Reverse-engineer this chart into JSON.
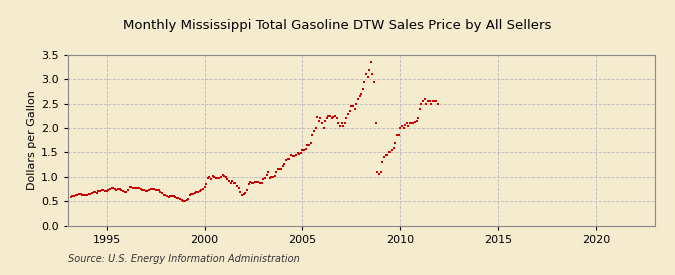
{
  "title": "Monthly Mississippi Total Gasoline DTW Sales Price by All Sellers",
  "ylabel": "Dollars per Gallon",
  "source": "Source: U.S. Energy Information Administration",
  "marker_color": "#CC0000",
  "background_color": "#F5EBCF",
  "plot_bg_color": "#F5EBCF",
  "grid_color": "#BBBBBB",
  "xlim": [
    1993.0,
    2023.0
  ],
  "ylim": [
    0.0,
    3.5
  ],
  "yticks": [
    0.0,
    0.5,
    1.0,
    1.5,
    2.0,
    2.5,
    3.0,
    3.5
  ],
  "xticks": [
    1995,
    2000,
    2005,
    2010,
    2015,
    2020
  ],
  "data": [
    [
      1993.17,
      0.59
    ],
    [
      1993.25,
      0.6
    ],
    [
      1993.33,
      0.6
    ],
    [
      1993.42,
      0.62
    ],
    [
      1993.5,
      0.63
    ],
    [
      1993.58,
      0.65
    ],
    [
      1993.67,
      0.64
    ],
    [
      1993.75,
      0.63
    ],
    [
      1993.83,
      0.62
    ],
    [
      1993.92,
      0.63
    ],
    [
      1994.0,
      0.63
    ],
    [
      1994.08,
      0.65
    ],
    [
      1994.17,
      0.65
    ],
    [
      1994.25,
      0.67
    ],
    [
      1994.33,
      0.68
    ],
    [
      1994.42,
      0.68
    ],
    [
      1994.5,
      0.67
    ],
    [
      1994.58,
      0.7
    ],
    [
      1994.67,
      0.71
    ],
    [
      1994.75,
      0.72
    ],
    [
      1994.83,
      0.72
    ],
    [
      1994.92,
      0.7
    ],
    [
      1995.0,
      0.71
    ],
    [
      1995.08,
      0.73
    ],
    [
      1995.17,
      0.74
    ],
    [
      1995.25,
      0.76
    ],
    [
      1995.33,
      0.76
    ],
    [
      1995.42,
      0.75
    ],
    [
      1995.5,
      0.73
    ],
    [
      1995.58,
      0.74
    ],
    [
      1995.67,
      0.74
    ],
    [
      1995.75,
      0.73
    ],
    [
      1995.83,
      0.7
    ],
    [
      1995.92,
      0.68
    ],
    [
      1996.0,
      0.69
    ],
    [
      1996.08,
      0.73
    ],
    [
      1996.17,
      0.79
    ],
    [
      1996.25,
      0.8
    ],
    [
      1996.33,
      0.78
    ],
    [
      1996.42,
      0.76
    ],
    [
      1996.5,
      0.76
    ],
    [
      1996.58,
      0.77
    ],
    [
      1996.67,
      0.76
    ],
    [
      1996.75,
      0.74
    ],
    [
      1996.83,
      0.72
    ],
    [
      1996.92,
      0.72
    ],
    [
      1997.0,
      0.71
    ],
    [
      1997.08,
      0.71
    ],
    [
      1997.17,
      0.72
    ],
    [
      1997.25,
      0.75
    ],
    [
      1997.33,
      0.74
    ],
    [
      1997.42,
      0.74
    ],
    [
      1997.5,
      0.73
    ],
    [
      1997.58,
      0.73
    ],
    [
      1997.67,
      0.72
    ],
    [
      1997.75,
      0.69
    ],
    [
      1997.83,
      0.66
    ],
    [
      1997.92,
      0.63
    ],
    [
      1998.0,
      0.62
    ],
    [
      1998.08,
      0.6
    ],
    [
      1998.17,
      0.59
    ],
    [
      1998.25,
      0.6
    ],
    [
      1998.33,
      0.6
    ],
    [
      1998.42,
      0.6
    ],
    [
      1998.5,
      0.58
    ],
    [
      1998.58,
      0.57
    ],
    [
      1998.67,
      0.56
    ],
    [
      1998.75,
      0.55
    ],
    [
      1998.83,
      0.53
    ],
    [
      1998.92,
      0.51
    ],
    [
      1999.0,
      0.5
    ],
    [
      1999.08,
      0.52
    ],
    [
      1999.17,
      0.55
    ],
    [
      1999.25,
      0.62
    ],
    [
      1999.33,
      0.64
    ],
    [
      1999.42,
      0.65
    ],
    [
      1999.5,
      0.67
    ],
    [
      1999.58,
      0.68
    ],
    [
      1999.67,
      0.69
    ],
    [
      1999.75,
      0.7
    ],
    [
      1999.83,
      0.73
    ],
    [
      1999.92,
      0.75
    ],
    [
      2000.0,
      0.8
    ],
    [
      2000.08,
      0.85
    ],
    [
      2000.17,
      0.97
    ],
    [
      2000.25,
      1.0
    ],
    [
      2000.33,
      0.96
    ],
    [
      2000.42,
      1.01
    ],
    [
      2000.5,
      1.0
    ],
    [
      2000.58,
      0.97
    ],
    [
      2000.67,
      0.98
    ],
    [
      2000.75,
      0.97
    ],
    [
      2000.83,
      1.0
    ],
    [
      2000.92,
      1.04
    ],
    [
      2001.0,
      1.02
    ],
    [
      2001.08,
      0.99
    ],
    [
      2001.17,
      0.95
    ],
    [
      2001.25,
      0.91
    ],
    [
      2001.33,
      0.87
    ],
    [
      2001.42,
      0.91
    ],
    [
      2001.5,
      0.88
    ],
    [
      2001.58,
      0.87
    ],
    [
      2001.67,
      0.82
    ],
    [
      2001.75,
      0.76
    ],
    [
      2001.83,
      0.68
    ],
    [
      2001.92,
      0.62
    ],
    [
      2002.0,
      0.65
    ],
    [
      2002.08,
      0.67
    ],
    [
      2002.17,
      0.72
    ],
    [
      2002.25,
      0.86
    ],
    [
      2002.33,
      0.9
    ],
    [
      2002.42,
      0.88
    ],
    [
      2002.5,
      0.87
    ],
    [
      2002.58,
      0.89
    ],
    [
      2002.67,
      0.89
    ],
    [
      2002.75,
      0.9
    ],
    [
      2002.83,
      0.88
    ],
    [
      2002.92,
      0.88
    ],
    [
      2003.0,
      0.95
    ],
    [
      2003.08,
      0.98
    ],
    [
      2003.17,
      1.04
    ],
    [
      2003.25,
      1.1
    ],
    [
      2003.33,
      0.97
    ],
    [
      2003.42,
      1.0
    ],
    [
      2003.5,
      1.0
    ],
    [
      2003.58,
      1.02
    ],
    [
      2003.67,
      1.1
    ],
    [
      2003.75,
      1.15
    ],
    [
      2003.83,
      1.15
    ],
    [
      2003.92,
      1.17
    ],
    [
      2004.0,
      1.22
    ],
    [
      2004.08,
      1.27
    ],
    [
      2004.17,
      1.35
    ],
    [
      2004.25,
      1.37
    ],
    [
      2004.33,
      1.37
    ],
    [
      2004.42,
      1.45
    ],
    [
      2004.5,
      1.43
    ],
    [
      2004.58,
      1.43
    ],
    [
      2004.67,
      1.44
    ],
    [
      2004.75,
      1.48
    ],
    [
      2004.83,
      1.47
    ],
    [
      2004.92,
      1.48
    ],
    [
      2005.0,
      1.55
    ],
    [
      2005.08,
      1.55
    ],
    [
      2005.17,
      1.57
    ],
    [
      2005.25,
      1.65
    ],
    [
      2005.33,
      1.65
    ],
    [
      2005.42,
      1.7
    ],
    [
      2005.5,
      1.85
    ],
    [
      2005.58,
      1.95
    ],
    [
      2005.67,
      2.0
    ],
    [
      2005.75,
      2.22
    ],
    [
      2005.83,
      2.15
    ],
    [
      2005.92,
      2.2
    ],
    [
      2006.0,
      2.1
    ],
    [
      2006.08,
      2.0
    ],
    [
      2006.17,
      2.15
    ],
    [
      2006.25,
      2.2
    ],
    [
      2006.33,
      2.25
    ],
    [
      2006.42,
      2.25
    ],
    [
      2006.5,
      2.2
    ],
    [
      2006.58,
      2.22
    ],
    [
      2006.67,
      2.25
    ],
    [
      2006.75,
      2.2
    ],
    [
      2006.83,
      2.1
    ],
    [
      2006.92,
      2.05
    ],
    [
      2007.0,
      2.1
    ],
    [
      2007.08,
      2.05
    ],
    [
      2007.17,
      2.1
    ],
    [
      2007.25,
      2.2
    ],
    [
      2007.33,
      2.28
    ],
    [
      2007.42,
      2.35
    ],
    [
      2007.5,
      2.45
    ],
    [
      2007.58,
      2.45
    ],
    [
      2007.67,
      2.4
    ],
    [
      2007.75,
      2.5
    ],
    [
      2007.83,
      2.6
    ],
    [
      2007.92,
      2.65
    ],
    [
      2008.0,
      2.7
    ],
    [
      2008.08,
      2.8
    ],
    [
      2008.17,
      2.95
    ],
    [
      2008.25,
      3.1
    ],
    [
      2008.33,
      3.05
    ],
    [
      2008.42,
      3.2
    ],
    [
      2008.5,
      3.35
    ],
    [
      2008.58,
      3.1
    ],
    [
      2008.67,
      2.95
    ],
    [
      2008.75,
      2.1
    ],
    [
      2008.83,
      1.1
    ],
    [
      2008.92,
      1.05
    ],
    [
      2009.0,
      1.1
    ],
    [
      2009.08,
      1.3
    ],
    [
      2009.17,
      1.4
    ],
    [
      2009.25,
      1.45
    ],
    [
      2009.33,
      1.45
    ],
    [
      2009.42,
      1.5
    ],
    [
      2009.5,
      1.5
    ],
    [
      2009.58,
      1.55
    ],
    [
      2009.67,
      1.6
    ],
    [
      2009.75,
      1.7
    ],
    [
      2009.83,
      1.85
    ],
    [
      2009.92,
      1.85
    ],
    [
      2010.0,
      2.0
    ],
    [
      2010.08,
      2.05
    ],
    [
      2010.17,
      2.0
    ],
    [
      2010.25,
      2.07
    ],
    [
      2010.33,
      2.1
    ],
    [
      2010.42,
      2.05
    ],
    [
      2010.5,
      2.1
    ],
    [
      2010.58,
      2.1
    ],
    [
      2010.67,
      2.1
    ],
    [
      2010.75,
      2.12
    ],
    [
      2010.83,
      2.15
    ],
    [
      2010.92,
      2.2
    ],
    [
      2011.0,
      2.4
    ],
    [
      2011.08,
      2.5
    ],
    [
      2011.17,
      2.55
    ],
    [
      2011.25,
      2.6
    ],
    [
      2011.33,
      2.5
    ],
    [
      2011.42,
      2.55
    ],
    [
      2011.5,
      2.55
    ],
    [
      2011.58,
      2.5
    ],
    [
      2011.67,
      2.55
    ],
    [
      2011.75,
      2.55
    ],
    [
      2011.83,
      2.55
    ],
    [
      2011.92,
      2.5
    ]
  ]
}
